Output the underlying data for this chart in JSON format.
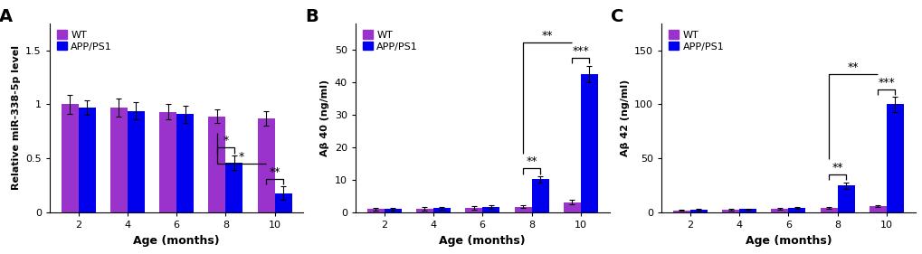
{
  "panel_A": {
    "label": "A",
    "ages": [
      2,
      4,
      6,
      8,
      10
    ],
    "WT_vals": [
      1.0,
      0.97,
      0.93,
      0.89,
      0.87
    ],
    "WT_err": [
      0.09,
      0.08,
      0.07,
      0.06,
      0.07
    ],
    "APP_vals": [
      0.97,
      0.94,
      0.91,
      0.46,
      0.18
    ],
    "APP_err": [
      0.07,
      0.08,
      0.08,
      0.07,
      0.06
    ],
    "ylabel": "Relative miR-338-5p level",
    "xlabel": "Age (months)",
    "ylim": [
      0,
      1.75
    ],
    "yticks": [
      0.0,
      0.5,
      1.0,
      1.5
    ],
    "sig_8_label": "*",
    "sig_10_label": "**",
    "sig_across_label": "*"
  },
  "panel_B": {
    "label": "B",
    "ages": [
      2,
      4,
      6,
      8,
      10
    ],
    "WT_vals": [
      1.0,
      1.2,
      1.5,
      1.8,
      3.2
    ],
    "WT_err": [
      0.5,
      0.5,
      0.6,
      0.5,
      0.7
    ],
    "APP_vals": [
      1.0,
      1.3,
      1.6,
      10.2,
      42.5
    ],
    "APP_err": [
      0.5,
      0.5,
      0.6,
      1.0,
      2.5
    ],
    "ylabel": "Aβ 40 (ng/ml)",
    "xlabel": "Age (months)",
    "ylim": [
      0,
      58
    ],
    "yticks": [
      0,
      10,
      20,
      30,
      40,
      50
    ],
    "sig_8_label": "**",
    "sig_10_label": "***",
    "sig_across_label": "**"
  },
  "panel_C": {
    "label": "C",
    "ages": [
      2,
      4,
      6,
      8,
      10
    ],
    "WT_vals": [
      2.0,
      2.5,
      3.5,
      4.5,
      6.0
    ],
    "WT_err": [
      0.5,
      0.5,
      0.7,
      0.8,
      1.0
    ],
    "APP_vals": [
      2.5,
      3.0,
      4.0,
      25.0,
      100.0
    ],
    "APP_err": [
      0.5,
      0.6,
      0.7,
      3.0,
      7.0
    ],
    "ylabel": "Aβ 42 (ng/ml)",
    "xlabel": "Age (months)",
    "ylim": [
      0,
      175
    ],
    "yticks": [
      0,
      50,
      100,
      150
    ],
    "sig_8_label": "**",
    "sig_10_label": "***",
    "sig_across_label": "**"
  },
  "WT_color": "#9933CC",
  "APP_color": "#0000EE",
  "bar_width": 0.35,
  "bg_color": "#FFFFFF",
  "fontsize": 8,
  "tick_fontsize": 8,
  "label_fontsize": 9,
  "panel_label_fontsize": 14
}
